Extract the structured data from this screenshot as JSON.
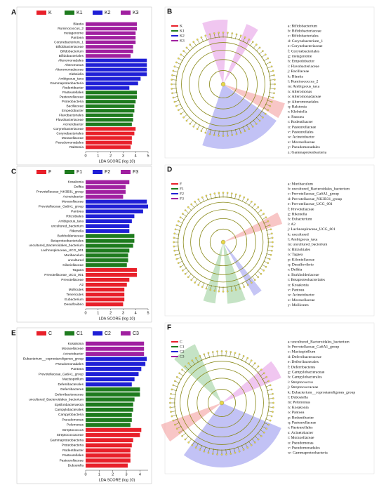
{
  "chart_data": [
    {
      "type": "bar",
      "orientation": "horizontal",
      "panel": "A",
      "xlabel": "LDA SCORE (log 10)",
      "categories": [
        "Blautia",
        "Ruminococcus_2",
        "metagenome",
        "Pantoea",
        "Corynebacterium_1",
        "Bifidobacteriaceae",
        "Bifidobacterium",
        "Bifidobacteriales",
        "Alteromonadales",
        "Alteromonas",
        "Alteromonadaceae",
        "Klebsiella",
        "Ambiguous_taxa",
        "Gammaproteobacteria",
        "Rodentibacter",
        "Pasteurellales",
        "Pasteurellaceae",
        "Proteobacteria",
        "Bacillaceae",
        "Empedobacter",
        "Flavobacteriales",
        "Flavobacteriaceae",
        "Acinetobacter",
        "Corynebacteriaceae",
        "Corynebacteriales",
        "Moraxellaceae",
        "Pseudomonadales",
        "Ralstonia"
      ],
      "series": [
        {
          "name": "K",
          "color": "#e8202a",
          "values": [
            null,
            null,
            null,
            null,
            null,
            null,
            null,
            null,
            null,
            null,
            null,
            null,
            null,
            null,
            null,
            null,
            null,
            null,
            null,
            null,
            null,
            null,
            null,
            4.0,
            3.9,
            3.7,
            3.7,
            3.6
          ]
        },
        {
          "name": "K1",
          "color": "#1e7b1e",
          "values": [
            null,
            null,
            null,
            null,
            null,
            null,
            null,
            null,
            null,
            null,
            null,
            null,
            null,
            null,
            null,
            4.1,
            4.1,
            4.0,
            3.9,
            3.9,
            3.8,
            3.8,
            3.7,
            null,
            null,
            null,
            null,
            null
          ]
        },
        {
          "name": "K2",
          "color": "#1f1fd6",
          "values": [
            null,
            null,
            null,
            null,
            null,
            null,
            null,
            null,
            4.9,
            4.9,
            4.9,
            4.9,
            4.4,
            4.2,
            3.5,
            null,
            null,
            null,
            null,
            null,
            null,
            null,
            null,
            null,
            null,
            null,
            null,
            null
          ]
        },
        {
          "name": "K3",
          "color": "#a020a0",
          "values": [
            4.1,
            4.1,
            4.0,
            4.0,
            4.0,
            3.8,
            3.8,
            3.6,
            null,
            null,
            null,
            null,
            null,
            null,
            null,
            null,
            null,
            null,
            null,
            null,
            null,
            null,
            null,
            null,
            null,
            null,
            null,
            null
          ]
        }
      ],
      "xlim": [
        0,
        5
      ],
      "xticks": [
        0,
        1,
        2,
        3,
        4,
        5
      ]
    },
    {
      "type": "bar",
      "orientation": "horizontal",
      "panel": "C",
      "xlabel": "LDA SCORE (log 10)",
      "categories": [
        "Kosakonia",
        "Delftia",
        "Prevotellaceae_NK3B31_group",
        "Acinetobacter",
        "Moraxellaceae",
        "Prevotellaceae_Ga6A1_group",
        "Pantoea",
        "Rhizobiales",
        "Ambiguous_taxa",
        "uncultured_bacterium",
        "Rikenella",
        "Burkholderiaceae",
        "Betaproteobacteriales",
        "uncultured_Bacteroidales_bacterium",
        "Lachnospiraceae_UCG_001",
        "Muribaculum",
        "uncultured",
        "Kiloniellaceae",
        "Tagaea",
        "Prevotellaceae_UCG_001",
        "Prevotellaceae",
        "A2",
        "Mollicutes",
        "Tenericutes",
        "Eubacterium",
        "Desulfovibrio"
      ],
      "series": [
        {
          "name": "F",
          "color": "#e8202a",
          "values": [
            null,
            null,
            null,
            null,
            null,
            null,
            null,
            null,
            null,
            null,
            null,
            null,
            null,
            null,
            null,
            null,
            null,
            null,
            4.1,
            4.1,
            3.5,
            3.3,
            3.1,
            3.1,
            3.1,
            3.0
          ]
        },
        {
          "name": "F1",
          "color": "#1e7b1e",
          "values": [
            null,
            null,
            null,
            null,
            null,
            null,
            null,
            null,
            null,
            null,
            null,
            3.9,
            3.9,
            3.8,
            3.5,
            3.4,
            3.4,
            3.3,
            null,
            null,
            null,
            null,
            null,
            null,
            null,
            null
          ]
        },
        {
          "name": "F2",
          "color": "#1f1fd6",
          "values": [
            null,
            null,
            null,
            null,
            4.9,
            5.0,
            4.6,
            3.9,
            3.7,
            3.5,
            3.5,
            null,
            null,
            null,
            null,
            null,
            null,
            null,
            null,
            null,
            null,
            null,
            null,
            null,
            null,
            null
          ]
        },
        {
          "name": "F3",
          "color": "#a020a0",
          "values": [
            3.5,
            3.2,
            3.2,
            3.0,
            null,
            null,
            null,
            null,
            null,
            null,
            null,
            null,
            null,
            null,
            null,
            null,
            null,
            null,
            null,
            null,
            null,
            null,
            null,
            null,
            null,
            null
          ]
        }
      ],
      "xlim": [
        0,
        5
      ],
      "xticks": [
        0,
        1,
        2,
        3,
        4,
        5
      ]
    },
    {
      "type": "bar",
      "orientation": "horizontal",
      "panel": "E",
      "xlabel": "LDA SCORE (log 10)",
      "categories": [
        "Kosakonia",
        "Moraxellaceae",
        "Acinetobacter",
        "Eubacterium__coprostanoligenes_group",
        "Pseudomonadales",
        "Pantoea",
        "Prevotellaceae_Ga6A1_group",
        "Macisspirillum",
        "Deferribacterales",
        "Deferribacteres",
        "Deferribacteraceae",
        "uncultured_Bacteroidales_bacterium",
        "Epsilonbacteraeota",
        "Campylobacterales",
        "Campylobacteria",
        "Pseudomonas",
        "Pelomonas",
        "Streptococcus",
        "Streptococcaceae",
        "Gammaproteobacteria",
        "Proteobacteria",
        "Rodentibacter",
        "Pasteurellales",
        "Pasteurellaceae",
        "Dubosiella"
      ],
      "series": [
        {
          "name": "C",
          "color": "#e8202a",
          "values": [
            null,
            null,
            null,
            null,
            null,
            null,
            null,
            null,
            null,
            null,
            null,
            null,
            null,
            null,
            null,
            null,
            null,
            4.1,
            4.0,
            3.5,
            3.4,
            3.3,
            3.3,
            3.3,
            3.1
          ]
        },
        {
          "name": "C1",
          "color": "#1e7b1e",
          "values": [
            null,
            null,
            null,
            null,
            null,
            null,
            null,
            null,
            null,
            4.0,
            4.0,
            3.6,
            3.5,
            3.5,
            3.4,
            3.4,
            3.3,
            null,
            null,
            null,
            null,
            null,
            null,
            null,
            null
          ]
        },
        {
          "name": "C2",
          "color": "#1f1fd6",
          "values": [
            null,
            null,
            null,
            4.5,
            4.4,
            4.1,
            3.9,
            3.6,
            3.4,
            null,
            null,
            null,
            null,
            null,
            null,
            null,
            null,
            null,
            null,
            null,
            null,
            null,
            null,
            null,
            null
          ]
        },
        {
          "name": "C3",
          "color": "#a020a0",
          "values": [
            4.3,
            4.3,
            4.3,
            null,
            null,
            null,
            null,
            null,
            null,
            null,
            null,
            null,
            null,
            null,
            null,
            null,
            null,
            null,
            null,
            null,
            null,
            null,
            null,
            null,
            null
          ]
        }
      ],
      "xlim": [
        0,
        4.6
      ],
      "xticks": [
        0,
        1,
        2,
        3,
        4
      ]
    }
  ],
  "cladograms": [
    {
      "panel": "B",
      "legend": [
        {
          "name": "K",
          "color": "#e8202a"
        },
        {
          "name": "K1",
          "color": "#1e7b1e"
        },
        {
          "name": "K2",
          "color": "#1f1fd6"
        },
        {
          "name": "K3",
          "color": "#a020a0"
        }
      ],
      "items": [
        "a: Bifidobacterium",
        "b: Bifidobacteriaceae",
        "c: Bifidobacteriales",
        "d: Corynebacterium_1",
        "e: Corynebacteriaceae",
        "f: Corynebacteriales",
        "g: metagenome",
        "h: Empedobacter",
        "i: Flavobacteriaceae",
        "j: Bacillaceae",
        "k: Blautia",
        "l: Ruminococcus_2",
        "m: Ambiguous_taxa",
        "n: Alteromonas",
        "o: Alteromonadaceae",
        "p: Alteromonadales",
        "q: Ralstonia",
        "r: Klebsiella",
        "s: Pantoea",
        "t: Rodentibacter",
        "u: Pasteurellaceae",
        "v: Pasteurellales",
        "w: Acinetobacter",
        "x: Moraxellaceae",
        "y: Pseudomonadales",
        "z: Gammaproteobacteria"
      ]
    },
    {
      "panel": "D",
      "legend": [
        {
          "name": "F",
          "color": "#e8202a"
        },
        {
          "name": "F1",
          "color": "#1e7b1e"
        },
        {
          "name": "F2",
          "color": "#1f1fd6"
        },
        {
          "name": "F3",
          "color": "#a020a0"
        }
      ],
      "items": [
        "a: Muribaculum",
        "b: uncultured_Bacteroidales_bacterium",
        "c: Prevotellaceae_Ga6A1_group",
        "d: Prevotellaceae_NK3B31_group",
        "e: Prevotellaceae_UCG_001",
        "f: Prevotellaceae",
        "g: Rikenella",
        "h: Eubacterium",
        "i: A2",
        "j: Lachnospiraceae_UCG_001",
        "k: uncultured",
        "l: Ambiguous_taxa",
        "m: uncultured_bacterium",
        "n: Rhizobiales",
        "o: Tagaea",
        "p: Kiloniellaceae",
        "q: Desulfovibrio",
        "r: Delftia",
        "s: Burkholderiaceae",
        "t: Betaproteobacteriales",
        "u: Kosakonia",
        "v: Pantoea",
        "w: Acinetobacter",
        "x: Moraxellaceae",
        "y: Mollicutes"
      ]
    },
    {
      "panel": "F",
      "legend": [
        {
          "name": "C",
          "color": "#e8202a"
        },
        {
          "name": "C1",
          "color": "#1e7b1e"
        },
        {
          "name": "C2",
          "color": "#1f1fd6"
        },
        {
          "name": "C3",
          "color": "#a020a0"
        }
      ],
      "items": [
        "a: uncultured_Bacteroidales_bacterium",
        "b: Prevotellaceae_Ga6A1_group",
        "c: Macisspirillum",
        "d: Deferribacteraceae",
        "e: Deferribacterales",
        "f: Deferribacteres",
        "g: Campylobacteraceae",
        "h: Campylobacterales",
        "i: Streptococcus",
        "j: Streptococcaceae",
        "k: Eubacterium__coprostanoligenes_group",
        "l: Dubosiella",
        "m: Pelomonas",
        "n: Kosakonia",
        "o: Pantoea",
        "p: Rodentibacter",
        "q: Pasteurellaceae",
        "r: Pasteurellales",
        "s: Acinetobacter",
        "t: Moraxellaceae",
        "u: Pseudomonas",
        "v: Pseudomonadales",
        "w: Gammaproteobacteria"
      ]
    }
  ]
}
